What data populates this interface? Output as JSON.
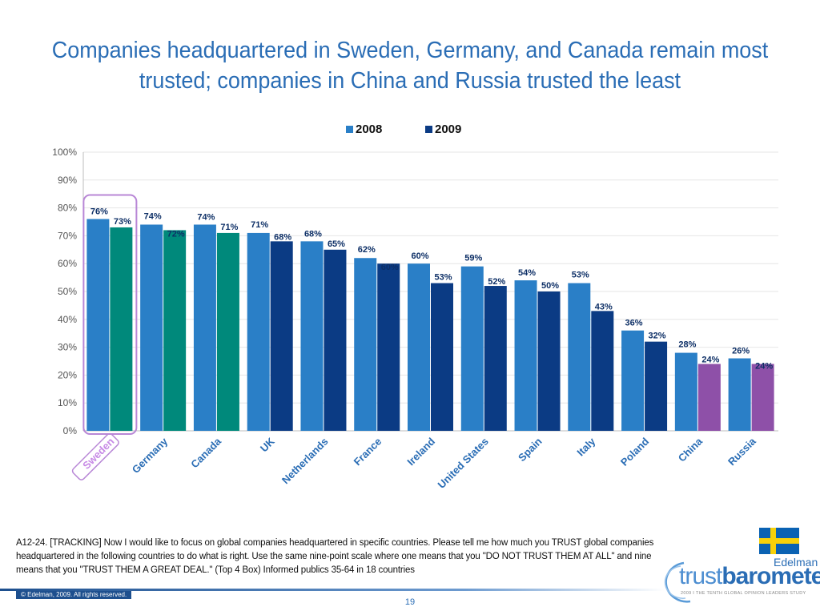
{
  "title_line1": "Companies headquartered in Sweden, Germany, and Canada remain most",
  "title_line2": "trusted; companies in China and Russia trusted the least",
  "chart_data": {
    "type": "bar",
    "categories": [
      "Sweden",
      "Germany",
      "Canada",
      "UK",
      "Netherlands",
      "France",
      "Ireland",
      "United States",
      "Spain",
      "Italy",
      "Poland",
      "China",
      "Russia"
    ],
    "series": [
      {
        "name": "2008",
        "values": [
          76,
          74,
          74,
          71,
          68,
          62,
          60,
          59,
          54,
          53,
          36,
          28,
          26
        ]
      },
      {
        "name": "2009",
        "values": [
          73,
          72,
          71,
          68,
          65,
          60,
          53,
          52,
          50,
          43,
          32,
          24,
          24
        ]
      }
    ],
    "y_ticks": [
      "0%",
      "10%",
      "20%",
      "30%",
      "40%",
      "50%",
      "60%",
      "70%",
      "80%",
      "90%",
      "100%"
    ],
    "ylim": [
      0,
      100
    ],
    "grid": true,
    "legend_placement": "top-center",
    "highlighted_category": "Sweden",
    "colors": {
      "series_2008": "#2a7fc7",
      "series_2009": "#0b3b84",
      "top_2009": "#00897b",
      "bottom_2009": "#8e50a8",
      "highlight": "#b887d6"
    }
  },
  "footnote": "A12-24. [TRACKING] Now I would like to focus on global companies headquartered in specific countries.  Please tell me how much you TRUST global companies headquartered in the following countries to do what is right. Use the same  nine-point scale where one means that you \"DO NOT TRUST THEM AT ALL\" and nine means that you \"TRUST THEM A GREAT DEAL.\"  (Top 4 Box) Informed publics 35-64 in 18 countries",
  "copyright": "© Edelman, 2009. All rights reserved.",
  "page_number": "19",
  "brand": "Edelman",
  "logo_text_thin": "trust",
  "logo_text_bold": "barometer",
  "tagline": "2009 I THE TENTH GLOBAL OPINION LEADERS STUDY"
}
